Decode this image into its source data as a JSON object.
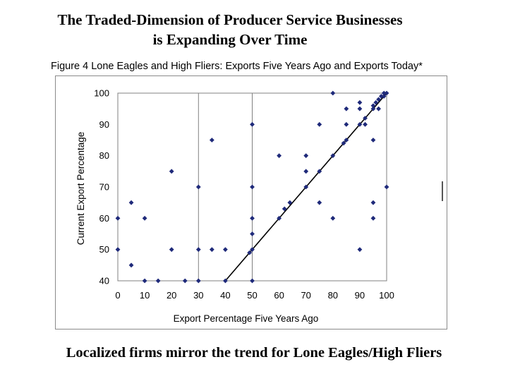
{
  "slide": {
    "title_line1": "The Traded-Dimension of Producer Service Businesses",
    "title_line2": "is Expanding Over Time",
    "figure_caption": "Figure 4 Lone Eagles and High Fliers:  Exports Five Years Ago and Exports Today*",
    "footer": "Localized firms mirror the trend for Lone Eagles/High Fliers"
  },
  "colors": {
    "marker": "#1f2a7a",
    "trend_line": "#000000",
    "plot_border": "#808080",
    "gridline": "#808080"
  },
  "chart_data": {
    "type": "scatter",
    "xlabel": "Export Percentage Five Years Ago",
    "ylabel": "Current Export Percentage",
    "xlim": [
      0,
      100
    ],
    "ylim": [
      40,
      100
    ],
    "xticks": [
      0,
      10,
      20,
      30,
      40,
      50,
      60,
      70,
      80,
      90,
      100
    ],
    "yticks": [
      40,
      50,
      60,
      70,
      80,
      90,
      100
    ],
    "vertical_gridlines": [
      30,
      50
    ],
    "trend_line": [
      [
        40,
        40
      ],
      [
        100,
        100
      ]
    ],
    "points": [
      [
        0,
        60
      ],
      [
        0,
        50
      ],
      [
        5,
        65
      ],
      [
        5,
        45
      ],
      [
        10,
        60
      ],
      [
        10,
        40
      ],
      [
        15,
        40
      ],
      [
        20,
        75
      ],
      [
        20,
        50
      ],
      [
        25,
        40
      ],
      [
        30,
        70
      ],
      [
        30,
        50
      ],
      [
        30,
        40
      ],
      [
        35,
        85
      ],
      [
        35,
        50
      ],
      [
        40,
        50
      ],
      [
        40,
        40
      ],
      [
        50,
        90
      ],
      [
        50,
        70
      ],
      [
        50,
        60
      ],
      [
        50,
        55
      ],
      [
        50,
        50
      ],
      [
        50,
        40
      ],
      [
        49,
        49
      ],
      [
        60,
        80
      ],
      [
        60,
        60
      ],
      [
        62,
        63
      ],
      [
        64,
        65
      ],
      [
        70,
        80
      ],
      [
        70,
        75
      ],
      [
        70,
        70
      ],
      [
        75,
        90
      ],
      [
        75,
        75
      ],
      [
        75,
        65
      ],
      [
        80,
        100
      ],
      [
        80,
        80
      ],
      [
        80,
        60
      ],
      [
        84,
        84
      ],
      [
        85,
        95
      ],
      [
        85,
        90
      ],
      [
        85,
        85
      ],
      [
        90,
        97
      ],
      [
        90,
        95
      ],
      [
        90,
        90
      ],
      [
        90,
        50
      ],
      [
        92,
        92
      ],
      [
        92,
        90
      ],
      [
        95,
        96
      ],
      [
        95,
        95
      ],
      [
        95,
        85
      ],
      [
        95,
        65
      ],
      [
        95,
        60
      ],
      [
        96,
        97
      ],
      [
        97,
        98
      ],
      [
        97,
        95
      ],
      [
        98,
        99
      ],
      [
        99,
        99
      ],
      [
        99,
        100
      ],
      [
        100,
        100
      ],
      [
        100,
        70
      ]
    ]
  }
}
